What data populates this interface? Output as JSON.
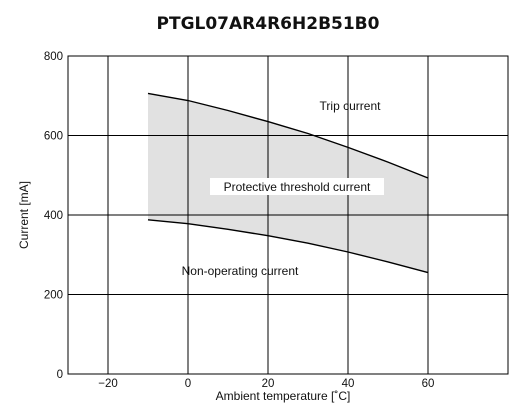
{
  "chart_data": {
    "type": "area",
    "title": "PTGL07AR4R6H2B51B0",
    "xlabel": "Ambient temperature [˚C]",
    "ylabel": "Current [mA]",
    "xlim": [
      -30,
      80
    ],
    "ylim": [
      0,
      800
    ],
    "x_ticks": [
      -20,
      0,
      20,
      40,
      60
    ],
    "x_tick_labels": [
      "−20",
      "0",
      "20",
      "40",
      "60"
    ],
    "y_ticks": [
      0,
      200,
      400,
      600,
      800
    ],
    "y_tick_labels": [
      "0",
      "200",
      "400",
      "600",
      "800"
    ],
    "grid": true,
    "series": [
      {
        "name": "Trip current",
        "x": [
          -10,
          0,
          10,
          20,
          30,
          40,
          50,
          60
        ],
        "y": [
          706,
          688,
          663,
          635,
          605,
          570,
          533,
          493
        ]
      },
      {
        "name": "Non-operating current",
        "x": [
          -10,
          0,
          10,
          20,
          30,
          40,
          50,
          60
        ],
        "y": [
          388,
          378,
          364,
          348,
          329,
          307,
          282,
          255
        ]
      }
    ],
    "fill_between": {
      "label": "Protective threshold current",
      "color": "#e1e1e1"
    },
    "colors": {
      "line": "#000000",
      "grid": "#000000",
      "band": "#e1e1e1"
    }
  }
}
